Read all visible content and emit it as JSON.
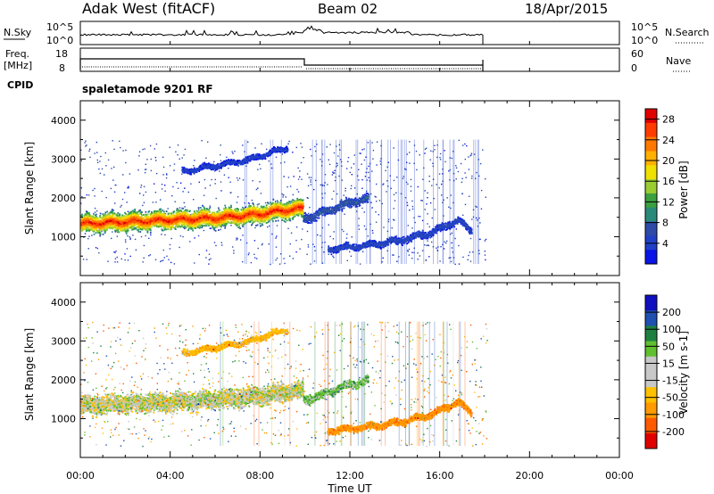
{
  "header": {
    "station": "Adak West (fitACF)",
    "beam": "Beam 02",
    "date": "18/Apr/2015"
  },
  "strips": {
    "nsky": {
      "label": "N.Sky",
      "scale_left": [
        "10^5",
        "10^0"
      ],
      "scale_right": [
        "10^5",
        "10^0"
      ],
      "right_label": "N.Search"
    },
    "freq": {
      "label": "Freq.",
      "unit": "[MHz]",
      "scale_left": [
        "18",
        "8"
      ],
      "scale_right": [
        "60",
        "0"
      ],
      "right_label": "Nave"
    },
    "cpid": {
      "label": "CPID",
      "value": "spaletamode 9201 RF"
    }
  },
  "colors": {
    "power": [
      "#0a14e6",
      "#2040c8",
      "#2e4ba8",
      "#2a8a7a",
      "#3aa040",
      "#9acd32",
      "#f0e000",
      "#ffb000",
      "#ff7800",
      "#ff3c00",
      "#e00000"
    ],
    "velocity": [
      "#e00000",
      "#ff5a00",
      "#ff9a00",
      "#ffc000",
      "#c8c8c8",
      "#c8c8c8",
      "#60c030",
      "#1e8040",
      "#2050b0",
      "#1010c0"
    ]
  },
  "chart_data": [
    {
      "type": "heatmap",
      "name": "power",
      "xlabel": "Time UT",
      "ylabel": "Slant Range [km]",
      "xlim": [
        0,
        24
      ],
      "ylim": [
        0,
        4500
      ],
      "xticks": [
        "00:00",
        "04:00",
        "08:00",
        "12:00",
        "16:00",
        "20:00",
        "00:00"
      ],
      "yticks": [
        1000,
        2000,
        3000,
        4000
      ],
      "colorbar": {
        "label": "Power [dB]",
        "ticks": [
          4,
          8,
          12,
          16,
          20,
          24,
          28
        ],
        "range": [
          0,
          30
        ]
      },
      "data_end_ut": 18.1,
      "bands": [
        {
          "x": [
            0.0,
            2.0,
            4.0,
            6.0,
            8.0,
            9.0,
            9.9
          ],
          "y": [
            1350,
            1400,
            1450,
            1500,
            1600,
            1700,
            1750
          ],
          "width": 320,
          "peak": 28
        },
        {
          "x": [
            9.9,
            10.4,
            11.0,
            12.0,
            12.8
          ],
          "y": [
            1500,
            1550,
            1700,
            1900,
            2000
          ],
          "width": 150,
          "peak": 8
        },
        {
          "x": [
            11.0,
            12.5,
            14.0,
            15.5,
            16.8,
            17.4
          ],
          "y": [
            700,
            780,
            900,
            1100,
            1450,
            1150
          ],
          "width": 120,
          "peak": 6
        },
        {
          "x": [
            4.5,
            6.0,
            7.5,
            8.5,
            9.2
          ],
          "y": [
            2700,
            2850,
            3000,
            3200,
            3300
          ],
          "width": 100,
          "peak": 5
        }
      ]
    },
    {
      "type": "heatmap",
      "name": "velocity",
      "xlabel": "Time UT",
      "ylabel": "Slant Range [km]",
      "xlim": [
        0,
        24
      ],
      "ylim": [
        0,
        4500
      ],
      "xticks": [
        "00:00",
        "04:00",
        "08:00",
        "12:00",
        "16:00",
        "20:00",
        "00:00"
      ],
      "yticks": [
        1000,
        2000,
        3000,
        4000
      ],
      "colorbar": {
        "label": "Velocity [m s-1]",
        "ticks": [
          -200,
          -100,
          -50,
          -15,
          15,
          50,
          100,
          200
        ],
        "range": [
          -250,
          250
        ]
      },
      "data_end_ut": 18.1,
      "bands": [
        {
          "x": [
            0.0,
            2.0,
            4.0,
            6.0,
            8.0,
            9.0,
            9.9
          ],
          "y": [
            1350,
            1400,
            1450,
            1500,
            1600,
            1700,
            1750
          ],
          "width": 320,
          "vel": 0
        },
        {
          "x": [
            9.9,
            10.4,
            11.0,
            12.0,
            12.8
          ],
          "y": [
            1500,
            1550,
            1700,
            1900,
            2000
          ],
          "width": 150,
          "vel": 30
        },
        {
          "x": [
            11.0,
            12.5,
            14.0,
            15.5,
            16.8,
            17.4
          ],
          "y": [
            700,
            780,
            900,
            1100,
            1450,
            1150
          ],
          "width": 120,
          "vel": -80
        },
        {
          "x": [
            4.5,
            6.0,
            7.5,
            8.5,
            9.2
          ],
          "y": [
            2700,
            2850,
            3000,
            3200,
            3300
          ],
          "width": 100,
          "vel": -40
        }
      ]
    }
  ]
}
